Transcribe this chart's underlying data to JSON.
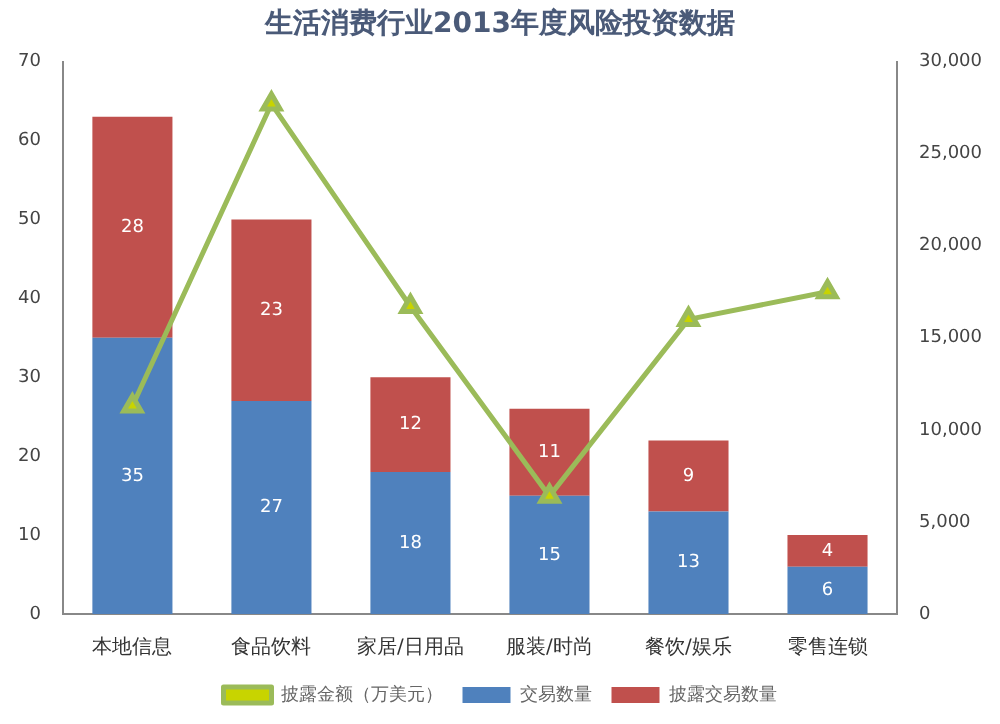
{
  "chart_data": {
    "type": "bar",
    "title": "生活消费行业2013年度风险投资数据",
    "stacked": true,
    "categories": [
      "本地信息",
      "食品饮料",
      "家居/日用品",
      "服装/时尚",
      "餐饮/娱乐",
      "零售连锁"
    ],
    "series": [
      {
        "name": "交易数量",
        "color": "#4f81bd",
        "values": [
          35,
          27,
          18,
          15,
          13,
          6
        ],
        "value_labels": [
          "35",
          "27",
          "18",
          "15",
          "13",
          "6"
        ]
      },
      {
        "name": "披露交易数量",
        "color": "#c0504d",
        "values": [
          28,
          23,
          12,
          11,
          9,
          4
        ],
        "value_labels": [
          "28",
          "23",
          "12",
          "11",
          "9",
          "4"
        ]
      },
      {
        "name": "披露金额（万美元）",
        "type": "line",
        "axis": "y2",
        "color": "#9bbb59",
        "marker": "triangle",
        "values": [
          11300,
          27700,
          16700,
          6400,
          16000,
          17500
        ]
      }
    ],
    "ylim": [
      0,
      70
    ],
    "yticks": [
      0,
      10,
      20,
      30,
      40,
      50,
      60,
      70
    ],
    "y2lim": [
      0,
      30000
    ],
    "y2ticks": [
      {
        "value": 0,
        "label": "0"
      },
      {
        "value": 5000,
        "label": "5,000"
      },
      {
        "value": 10000,
        "label": "10,000"
      },
      {
        "value": 15000,
        "label": "15,000"
      },
      {
        "value": 20000,
        "label": "20,000"
      },
      {
        "value": 25000,
        "label": "25,000"
      },
      {
        "value": 30000,
        "label": "30,000"
      }
    ],
    "grid": false,
    "legend": "bottom"
  }
}
